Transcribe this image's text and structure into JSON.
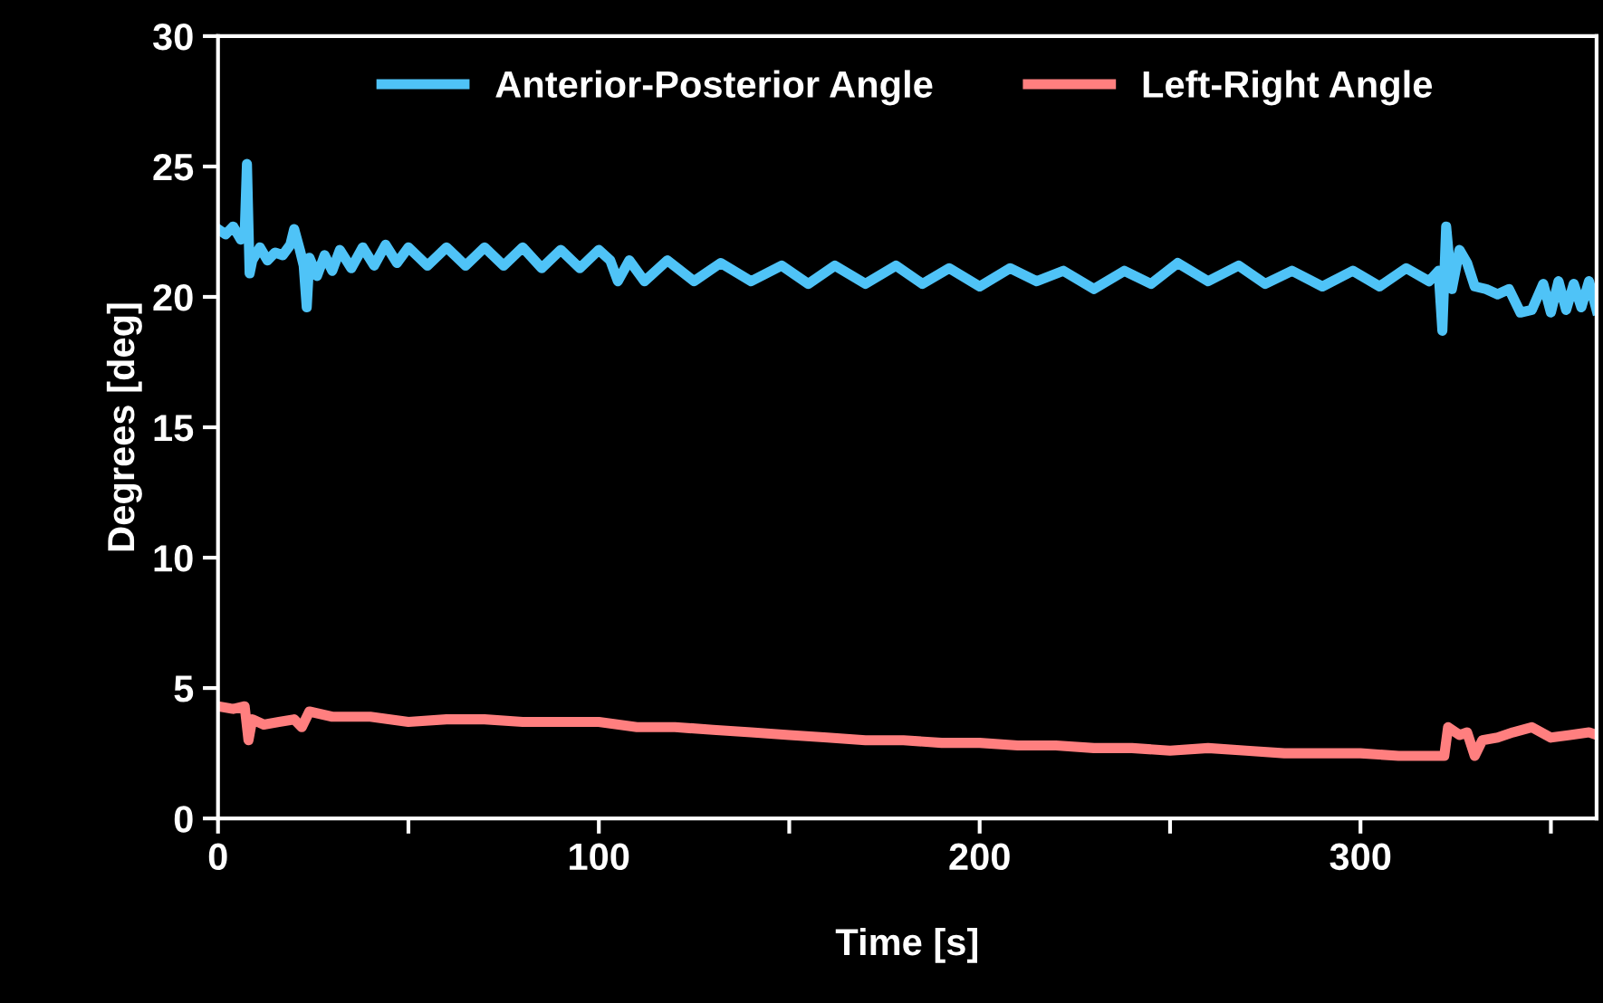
{
  "chart_data": {
    "type": "line",
    "xlabel": "Time [s]",
    "ylabel": "Degrees [deg]",
    "xlim": [
      0,
      362
    ],
    "xticks": [
      0,
      {
        "value": 50,
        "label": null
      },
      100,
      {
        "value": 150,
        "label": null
      },
      200,
      {
        "value": 250,
        "label": null
      },
      300,
      {
        "value": 350,
        "label": null
      }
    ],
    "ylim": [
      0,
      30
    ],
    "yticks": [
      0,
      5,
      10,
      15,
      20,
      25,
      30
    ],
    "grid": false,
    "legend": "top",
    "marker": "none",
    "line_style": "solid",
    "series": [
      {
        "name": "Anterior-Posterior Angle",
        "color": "#4fc3f7",
        "x": [
          0,
          2,
          4,
          6,
          7,
          7.6,
          8.3,
          9,
          11,
          13,
          15,
          17,
          19,
          20,
          21.5,
          22.5,
          23.3,
          24,
          26,
          28,
          30,
          32,
          35,
          38,
          41,
          44,
          47,
          50,
          55,
          60,
          65,
          70,
          75,
          80,
          85,
          90,
          95,
          100,
          103,
          105,
          108,
          112,
          118,
          125,
          132,
          140,
          148,
          155,
          162,
          170,
          178,
          185,
          192,
          200,
          208,
          215,
          222,
          230,
          238,
          245,
          252,
          260,
          268,
          275,
          282,
          290,
          298,
          305,
          312,
          318,
          320.5,
          321.5,
          322.5,
          324,
          326,
          328,
          330,
          333,
          336,
          339,
          342,
          345,
          348,
          350,
          352,
          354,
          356,
          358,
          360,
          362
        ],
        "values": [
          22.6,
          22.4,
          22.7,
          22.2,
          22.4,
          25.1,
          20.9,
          21.4,
          21.9,
          21.4,
          21.7,
          21.6,
          22.0,
          22.6,
          21.8,
          21.2,
          19.6,
          21.5,
          20.8,
          21.6,
          21.0,
          21.8,
          21.1,
          21.9,
          21.2,
          22.0,
          21.3,
          21.9,
          21.2,
          21.9,
          21.2,
          21.9,
          21.2,
          21.9,
          21.1,
          21.8,
          21.1,
          21.8,
          21.4,
          20.6,
          21.4,
          20.6,
          21.4,
          20.6,
          21.3,
          20.6,
          21.2,
          20.5,
          21.2,
          20.5,
          21.2,
          20.5,
          21.1,
          20.4,
          21.1,
          20.6,
          21.0,
          20.3,
          21.0,
          20.5,
          21.3,
          20.6,
          21.2,
          20.5,
          21.0,
          20.4,
          21.0,
          20.4,
          21.1,
          20.6,
          21.0,
          18.7,
          22.7,
          20.3,
          21.8,
          21.3,
          20.4,
          20.3,
          20.1,
          20.3,
          19.4,
          19.5,
          20.5,
          19.4,
          20.6,
          19.5,
          20.5,
          19.6,
          20.6,
          19.5
        ]
      },
      {
        "name": "Left-Right Angle",
        "color": "#ff7f7f",
        "x": [
          0,
          4,
          7,
          8,
          9,
          12,
          16,
          20,
          22,
          24,
          30,
          40,
          50,
          60,
          70,
          80,
          90,
          100,
          110,
          120,
          130,
          140,
          150,
          160,
          170,
          180,
          190,
          200,
          210,
          220,
          230,
          240,
          250,
          260,
          270,
          280,
          290,
          300,
          310,
          320,
          322,
          323,
          326,
          328,
          330,
          332,
          336,
          340,
          345,
          350,
          355,
          360,
          362
        ],
        "values": [
          4.3,
          4.2,
          4.3,
          3.0,
          3.8,
          3.6,
          3.7,
          3.8,
          3.5,
          4.1,
          3.9,
          3.9,
          3.7,
          3.8,
          3.8,
          3.7,
          3.7,
          3.7,
          3.5,
          3.5,
          3.4,
          3.3,
          3.2,
          3.1,
          3.0,
          3.0,
          2.9,
          2.9,
          2.8,
          2.8,
          2.7,
          2.7,
          2.6,
          2.7,
          2.6,
          2.5,
          2.5,
          2.5,
          2.4,
          2.4,
          2.4,
          3.5,
          3.2,
          3.3,
          2.4,
          3.0,
          3.1,
          3.3,
          3.5,
          3.1,
          3.2,
          3.3,
          3.2
        ]
      }
    ]
  }
}
